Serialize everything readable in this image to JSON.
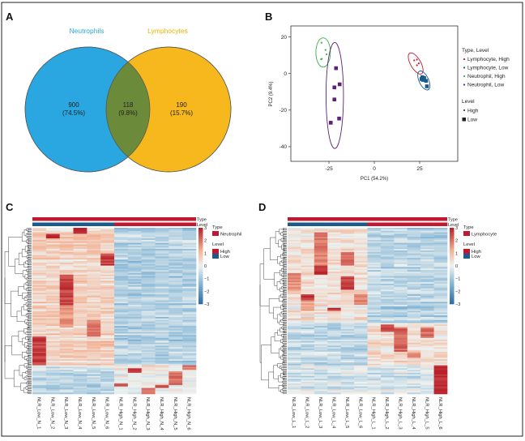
{
  "panels": {
    "a": "A",
    "b": "B",
    "c": "C",
    "d": "D"
  },
  "colors": {
    "neutrophils": "#2aa7e0",
    "lymphocytes": "#f7b81e",
    "overlap": "#6b8a3a",
    "high": "#c0182e",
    "low": "#1a5a8c",
    "lymph_high": "#c0182e",
    "lymph_low": "#1a5a8c",
    "neut_high": "#3cb04a",
    "neut_low": "#5b2277"
  },
  "chart_data": [
    {
      "type": "venn",
      "sets": [
        "Neutrophils",
        "Lymphocytes"
      ],
      "regions": [
        {
          "set": "Neutrophils only",
          "count": "900",
          "percent": "(74.5%)"
        },
        {
          "set": "Both",
          "count": "118",
          "percent": "(9.8%)"
        },
        {
          "set": "Lymphocytes only",
          "count": "190",
          "percent": "(15.7%)"
        }
      ]
    },
    {
      "type": "scatter",
      "xlabel": "PC1 (54.2%)",
      "ylabel": "PC2 (9.4%)",
      "xlim": [
        -46,
        46
      ],
      "ylim": [
        -48,
        26
      ],
      "xticks": [
        "-25",
        "0",
        "25"
      ],
      "xtick_values": [
        -25,
        0,
        25
      ],
      "yticks": [
        "20",
        "0",
        "-20",
        "-40"
      ],
      "ytick_values": [
        20,
        0,
        -20,
        -40
      ],
      "legend_title": "Type, Level",
      "legend_placement": "right",
      "shape_legend_title": "Level",
      "shape_legend": [
        {
          "label": "High",
          "shape": "dot"
        },
        {
          "label": "Low",
          "shape": "square"
        }
      ],
      "series": [
        {
          "name": "Lymphocyte, High",
          "color": "#c0182e",
          "shape": "dot",
          "points": [
            [
              22.0,
              7.2
            ],
            [
              23.5,
              7.6
            ],
            [
              23.5,
              4.5
            ],
            [
              24.5,
              5.5
            ]
          ]
        },
        {
          "name": "Lymphocyte, Low",
          "color": "#1a5a8c",
          "shape": "square",
          "points": [
            [
              26.0,
              -3.0
            ],
            [
              26.5,
              -2.0
            ],
            [
              26.8,
              -3.5
            ],
            [
              27.5,
              -2.5
            ],
            [
              28.5,
              -4.0
            ],
            [
              29.0,
              -7.0
            ]
          ]
        },
        {
          "name": "Neutrophil, High",
          "color": "#3cb04a",
          "shape": "dot",
          "points": [
            [
              -29.1,
              16.8
            ],
            [
              -26.9,
              12.9
            ],
            [
              -26.3,
              10.5
            ],
            [
              -29.3,
              7.8
            ],
            [
              -29.0,
              8.0
            ]
          ]
        },
        {
          "name": "Neutrophil, Low",
          "color": "#5b2277",
          "shape": "square",
          "points": [
            [
              -21.1,
              2.9
            ],
            [
              -19.1,
              -5.9
            ],
            [
              -22.0,
              -7.6
            ],
            [
              -22.0,
              -14.2
            ],
            [
              -19.4,
              -24.6
            ],
            [
              -24.0,
              -26.9
            ]
          ]
        }
      ]
    },
    {
      "type": "heatmap",
      "columns": [
        "NLR_Low_N_1",
        "NLR_Low_N_2",
        "NLR_Low_N_3",
        "NLR_Low_N_4",
        "NLR_Low_N_5",
        "NLR_Low_N_6",
        "NLR_High_N_1",
        "NLR_High_N_2",
        "NLR_High_N_3",
        "NLR_High_N_4",
        "NLR_High_N_5",
        "NLR_High_N_6"
      ],
      "column_levels": [
        "Low",
        "Low",
        "Low",
        "Low",
        "Low",
        "Low",
        "High",
        "High",
        "High",
        "High",
        "High",
        "High"
      ],
      "annotation_labels": [
        "Type",
        "Level"
      ],
      "type_legend_title": "Type",
      "type_value": "Neutrophil",
      "level_legend_title": "Level",
      "level_values": [
        "High",
        "Low"
      ],
      "color_scale": {
        "min": -3,
        "max": 3,
        "ticks": [
          "3",
          "2",
          "1",
          "0",
          "-1",
          "-2",
          "-3"
        ],
        "low": "#2a6aa6",
        "mid": "#eef2f0",
        "high": "#b8202a"
      }
    },
    {
      "type": "heatmap",
      "columns": [
        "NLR_Low_L_1",
        "NLR_Low_L_2",
        "NLR_Low_L_3",
        "NLR_Low_L_4",
        "NLR_Low_L_5",
        "NLR_Low_L_6",
        "NLR_High_L_1",
        "NLR_High_L_2",
        "NLR_High_L_3",
        "NLR_High_L_4",
        "NLR_High_L_5",
        "NLR_High_L_6"
      ],
      "column_levels": [
        "Low",
        "Low",
        "Low",
        "Low",
        "Low",
        "Low",
        "High",
        "High",
        "High",
        "High",
        "High",
        "High"
      ],
      "annotation_labels": [
        "Type",
        "Level"
      ],
      "type_legend_title": "Type",
      "type_value": "Lymphocyte",
      "level_legend_title": "Level",
      "level_values": [
        "High",
        "Low"
      ],
      "color_scale": {
        "min": -3,
        "max": 3,
        "ticks": [
          "3",
          "2",
          "1",
          "0",
          "-1",
          "-2",
          "-3"
        ],
        "low": "#2a6aa6",
        "mid": "#eef2f0",
        "high": "#b8202a"
      }
    }
  ]
}
